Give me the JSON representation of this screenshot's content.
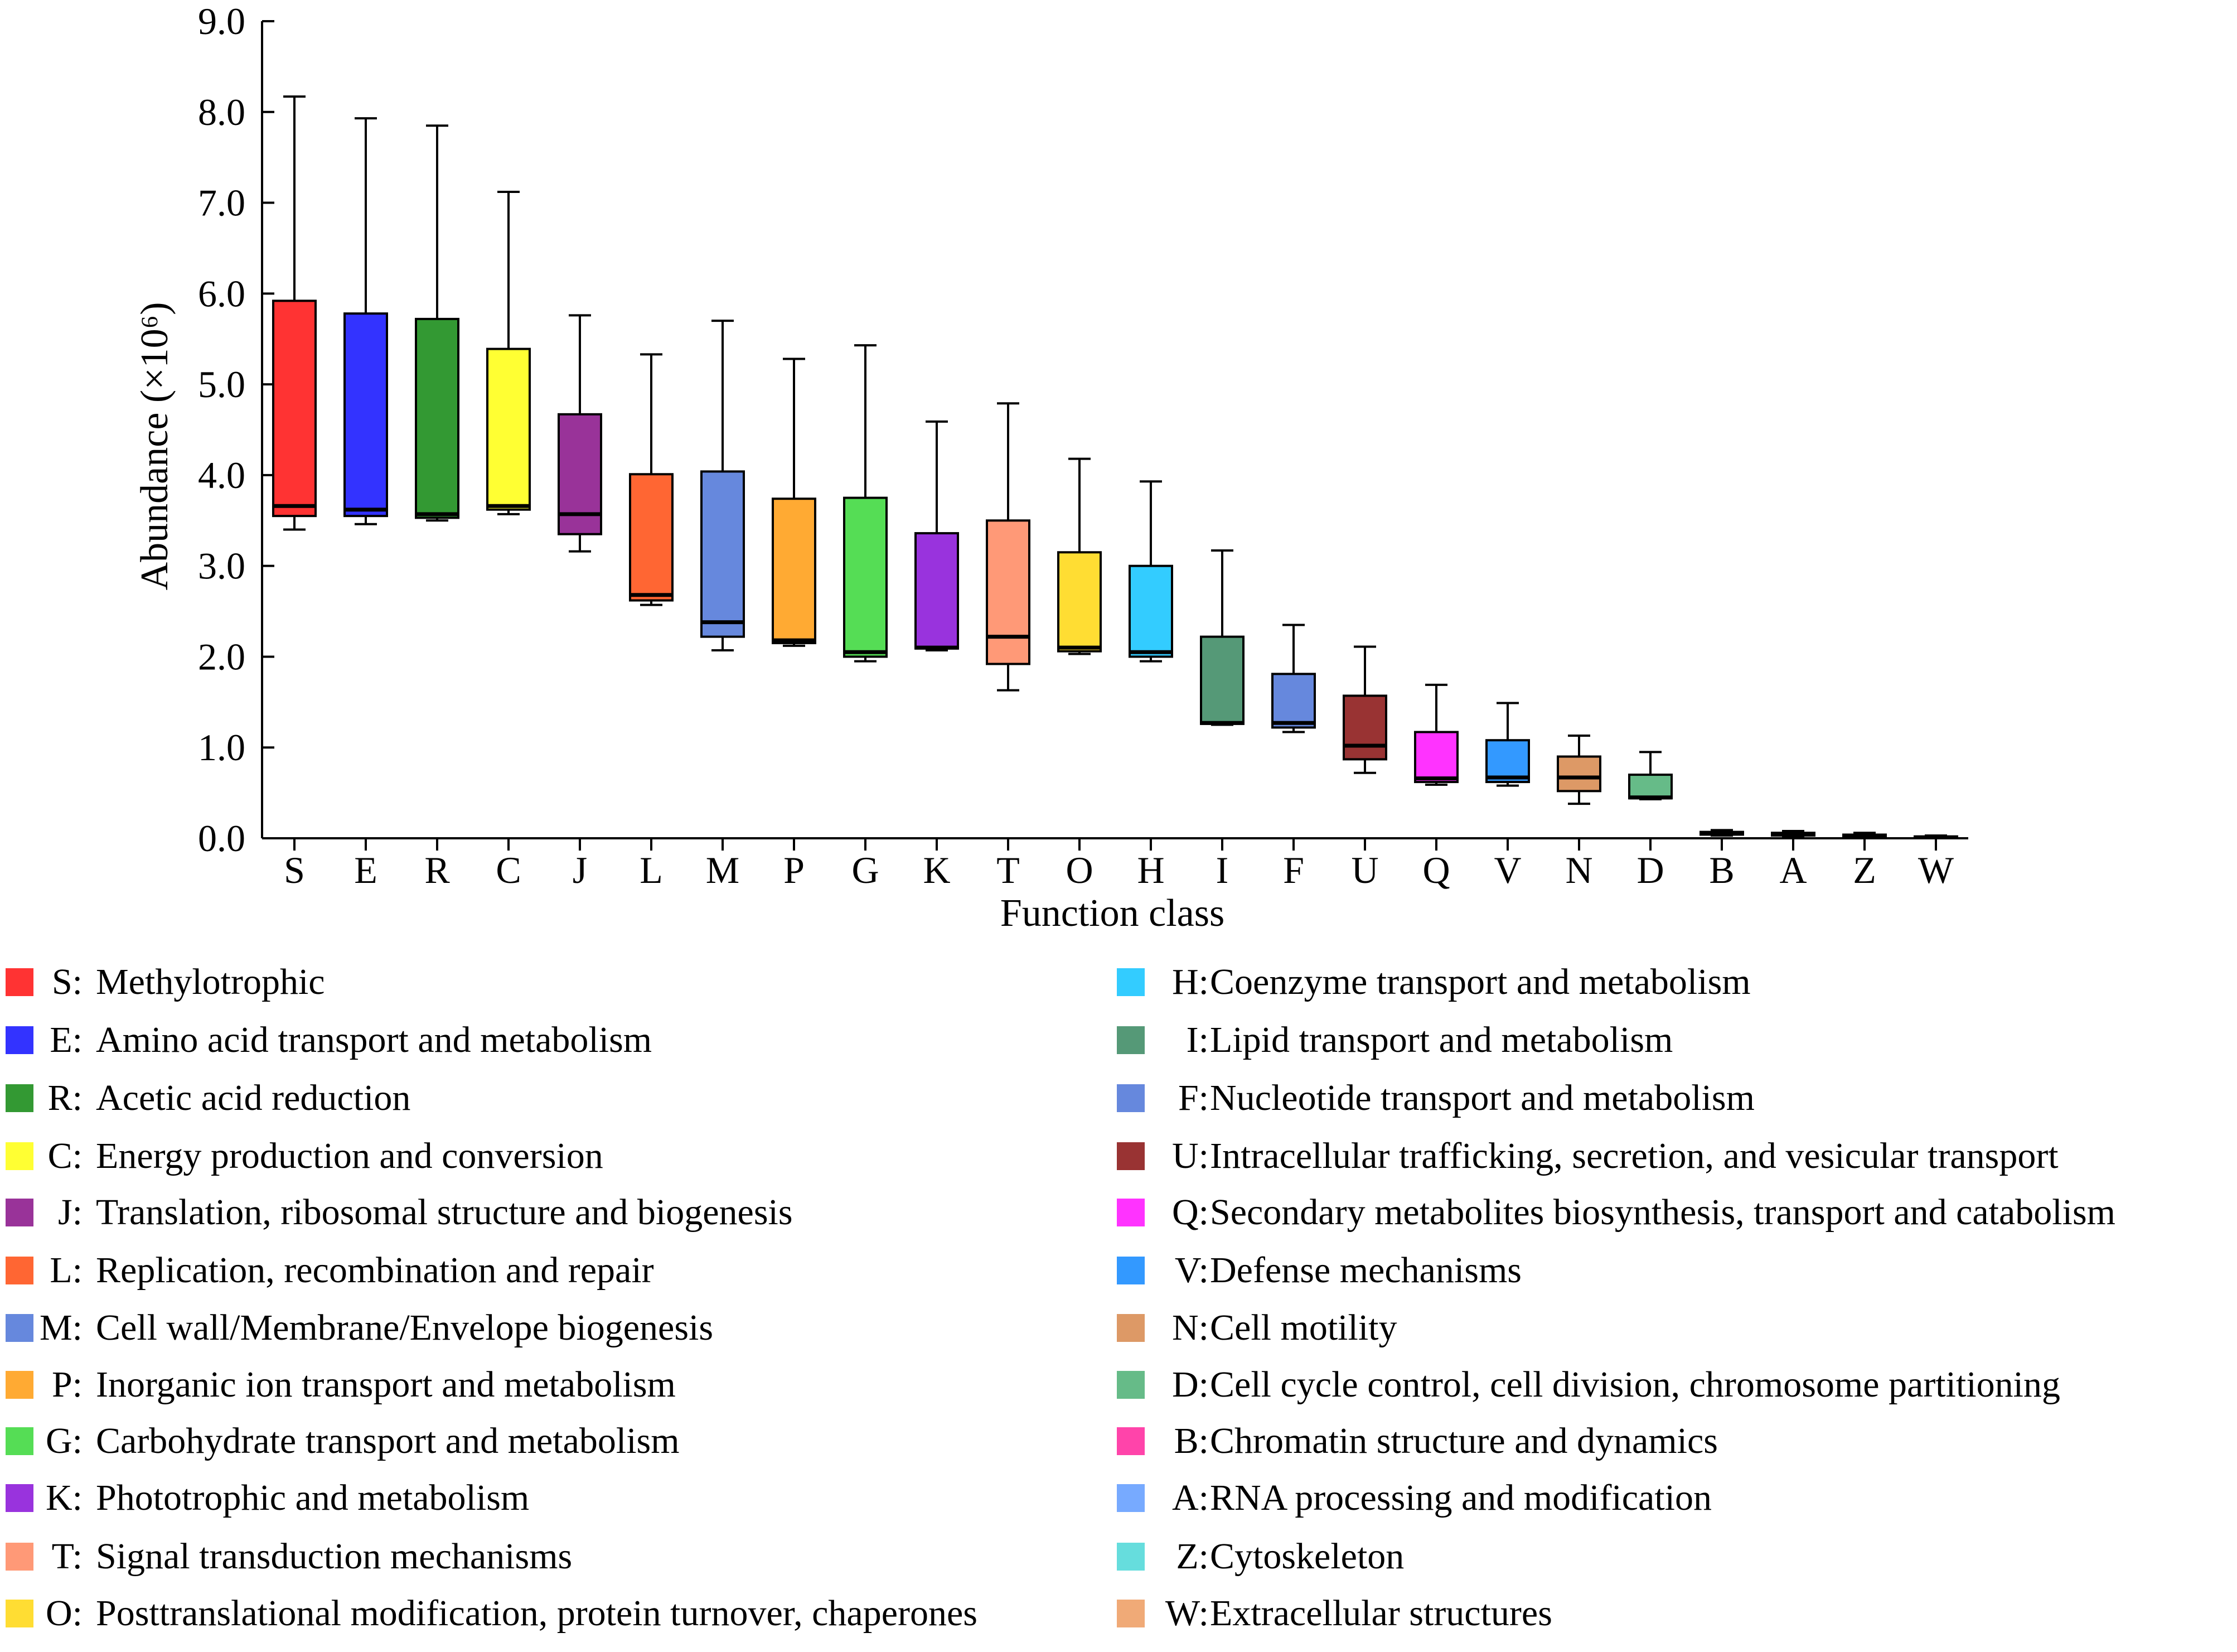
{
  "chart_data": {
    "type": "boxplot",
    "xlabel": "Function class",
    "ylabel": "Abundance (×10⁶)",
    "ylim": [
      0,
      9
    ],
    "yticks": [
      "0.0",
      "1.0",
      "2.0",
      "3.0",
      "4.0",
      "5.0",
      "6.0",
      "7.0",
      "8.0",
      "9.0"
    ],
    "grid": false,
    "categories": [
      "S",
      "E",
      "R",
      "C",
      "J",
      "L",
      "M",
      "P",
      "G",
      "K",
      "T",
      "O",
      "H",
      "I",
      "F",
      "U",
      "Q",
      "V",
      "N",
      "D",
      "B",
      "A",
      "Z",
      "W"
    ],
    "boxes": [
      {
        "cat": "S",
        "min": 3.4,
        "q1": 3.55,
        "median": 3.66,
        "q3": 5.92,
        "max": 8.17,
        "color": "#ff3333"
      },
      {
        "cat": "E",
        "min": 3.46,
        "q1": 3.55,
        "median": 3.62,
        "q3": 5.78,
        "max": 7.93,
        "color": "#3333ff"
      },
      {
        "cat": "R",
        "min": 3.5,
        "q1": 3.53,
        "median": 3.57,
        "q3": 5.72,
        "max": 7.85,
        "color": "#339933"
      },
      {
        "cat": "C",
        "min": 3.57,
        "q1": 3.62,
        "median": 3.66,
        "q3": 5.39,
        "max": 7.12,
        "color": "#ffff33"
      },
      {
        "cat": "J",
        "min": 3.16,
        "q1": 3.35,
        "median": 3.57,
        "q3": 4.67,
        "max": 5.76,
        "color": "#993399"
      },
      {
        "cat": "L",
        "min": 2.57,
        "q1": 2.62,
        "median": 2.68,
        "q3": 4.01,
        "max": 5.33,
        "color": "#ff6633"
      },
      {
        "cat": "M",
        "min": 2.07,
        "q1": 2.22,
        "median": 2.38,
        "q3": 4.04,
        "max": 5.7,
        "color": "#6688dd"
      },
      {
        "cat": "P",
        "min": 2.12,
        "q1": 2.15,
        "median": 2.18,
        "q3": 3.74,
        "max": 5.28,
        "color": "#ffaa33"
      },
      {
        "cat": "G",
        "min": 1.95,
        "q1": 2.0,
        "median": 2.05,
        "q3": 3.75,
        "max": 5.43,
        "color": "#55dd55"
      },
      {
        "cat": "K",
        "min": 2.07,
        "q1": 2.09,
        "median": 2.1,
        "q3": 3.36,
        "max": 4.59,
        "color": "#9933dd"
      },
      {
        "cat": "T",
        "min": 1.63,
        "q1": 1.92,
        "median": 2.22,
        "q3": 3.5,
        "max": 4.79,
        "color": "#ff9977"
      },
      {
        "cat": "O",
        "min": 2.03,
        "q1": 2.06,
        "median": 2.1,
        "q3": 3.15,
        "max": 4.18,
        "color": "#ffdd33"
      },
      {
        "cat": "H",
        "min": 1.95,
        "q1": 2.0,
        "median": 2.05,
        "q3": 3.0,
        "max": 3.93,
        "color": "#33ccff"
      },
      {
        "cat": "I",
        "min": 1.25,
        "q1": 1.26,
        "median": 1.27,
        "q3": 2.22,
        "max": 3.17,
        "color": "#559977"
      },
      {
        "cat": "F",
        "min": 1.17,
        "q1": 1.22,
        "median": 1.27,
        "q3": 1.81,
        "max": 2.35,
        "color": "#6688dd"
      },
      {
        "cat": "U",
        "min": 0.72,
        "q1": 0.87,
        "median": 1.02,
        "q3": 1.57,
        "max": 2.11,
        "color": "#993333"
      },
      {
        "cat": "Q",
        "min": 0.59,
        "q1": 0.62,
        "median": 0.66,
        "q3": 1.17,
        "max": 1.69,
        "color": "#ff33ff"
      },
      {
        "cat": "V",
        "min": 0.58,
        "q1": 0.62,
        "median": 0.67,
        "q3": 1.08,
        "max": 1.49,
        "color": "#3399ff"
      },
      {
        "cat": "N",
        "min": 0.38,
        "q1": 0.52,
        "median": 0.67,
        "q3": 0.9,
        "max": 1.13,
        "color": "#dd9966"
      },
      {
        "cat": "D",
        "min": 0.43,
        "q1": 0.44,
        "median": 0.45,
        "q3": 0.7,
        "max": 0.95,
        "color": "#66bb88"
      },
      {
        "cat": "B",
        "min": 0.03,
        "q1": 0.04,
        "median": 0.05,
        "q3": 0.07,
        "max": 0.09,
        "color": "#ff44aa"
      },
      {
        "cat": "A",
        "min": 0.02,
        "q1": 0.03,
        "median": 0.04,
        "q3": 0.06,
        "max": 0.08,
        "color": "#77aaff"
      },
      {
        "cat": "Z",
        "min": 0.01,
        "q1": 0.02,
        "median": 0.03,
        "q3": 0.04,
        "max": 0.06,
        "color": "#66dddd"
      },
      {
        "cat": "W",
        "min": 0.0,
        "q1": 0.01,
        "median": 0.01,
        "q3": 0.02,
        "max": 0.03,
        "color": "#f0aa77"
      }
    ],
    "legend": [
      {
        "code": "S:",
        "label": "Methylotrophic",
        "color": "#ff3333"
      },
      {
        "code": "E:",
        "label": "Amino acid transport and metabolism",
        "color": "#3333ff"
      },
      {
        "code": "R:",
        "label": "Acetic acid reduction",
        "color": "#339933"
      },
      {
        "code": "C:",
        "label": "Energy production and conversion",
        "color": "#ffff33"
      },
      {
        "code": "J:",
        "label": "Translation, ribosomal structure and biogenesis",
        "color": "#993399"
      },
      {
        "code": "L:",
        "label": "Replication, recombination and repair",
        "color": "#ff6633"
      },
      {
        "code": "M:",
        "label": "Cell wall/Membrane/Envelope biogenesis",
        "color": "#6688dd"
      },
      {
        "code": "P:",
        "label": "Inorganic ion transport and metabolism",
        "color": "#ffaa33"
      },
      {
        "code": "G:",
        "label": "Carbohydrate transport and metabolism",
        "color": "#55dd55"
      },
      {
        "code": "K:",
        "label": "Phototrophic and metabolism",
        "color": "#9933dd"
      },
      {
        "code": "T:",
        "label": "Signal transduction mechanisms",
        "color": "#ff9977"
      },
      {
        "code": "O:",
        "label": "Posttranslational modification, protein turnover, chaperones",
        "color": "#ffdd33"
      },
      {
        "code": "H:",
        "label": "Coenzyme transport and metabolism",
        "color": "#33ccff"
      },
      {
        "code": "I:",
        "label": "Lipid transport and metabolism",
        "color": "#559977"
      },
      {
        "code": "F:",
        "label": "Nucleotide transport and metabolism",
        "color": "#6688dd"
      },
      {
        "code": "U:",
        "label": "Intracellular trafficking, secretion, and vesicular transport",
        "color": "#993333"
      },
      {
        "code": "Q:",
        "label": "Secondary metabolites biosynthesis, transport and catabolism",
        "color": "#ff33ff"
      },
      {
        "code": "V:",
        "label": "Defense mechanisms",
        "color": "#3399ff"
      },
      {
        "code": "N:",
        "label": "Cell motility",
        "color": "#dd9966"
      },
      {
        "code": "D:",
        "label": "Cell cycle control, cell division, chromosome partitioning",
        "color": "#66bb88"
      },
      {
        "code": "B:",
        "label": "Chromatin structure and dynamics",
        "color": "#ff44aa"
      },
      {
        "code": "A:",
        "label": "RNA processing and modification",
        "color": "#77aaff"
      },
      {
        "code": "Z:",
        "label": "Cytoskeleton",
        "color": "#66dddd"
      },
      {
        "code": "W:",
        "label": "Extracellular structures",
        "color": "#f0aa77"
      }
    ]
  }
}
